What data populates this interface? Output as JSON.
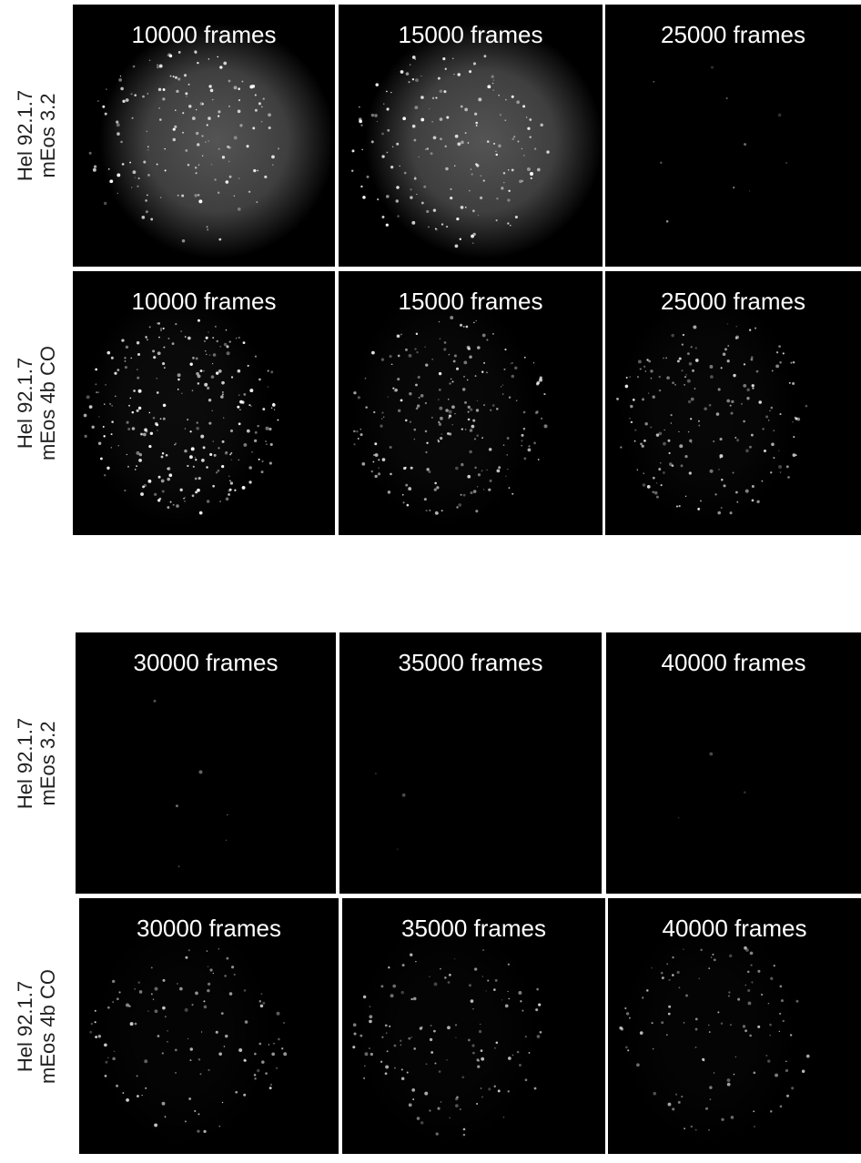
{
  "blocks": [
    {
      "rows": [
        {
          "label": [
            "Hel 92.1.7",
            "mEos 3.2"
          ],
          "panels": [
            "10000 frames",
            "15000 frames",
            "25000 frames"
          ]
        },
        {
          "label": [
            "Hel 92.1.7",
            "mEos 4b CO"
          ],
          "panels": [
            "10000 frames",
            "15000 frames",
            "25000 frames"
          ]
        }
      ]
    },
    {
      "rows": [
        {
          "label": [
            "Hel 92.1.7",
            "mEos 3.2"
          ],
          "panels": [
            "30000 frames",
            "35000 frames",
            "40000 frames"
          ]
        },
        {
          "label": [
            "Hel 92.1.7",
            "mEos 4b CO"
          ],
          "panels": [
            "30000 frames",
            "35000 frames",
            "40000 frames"
          ]
        }
      ]
    }
  ]
}
